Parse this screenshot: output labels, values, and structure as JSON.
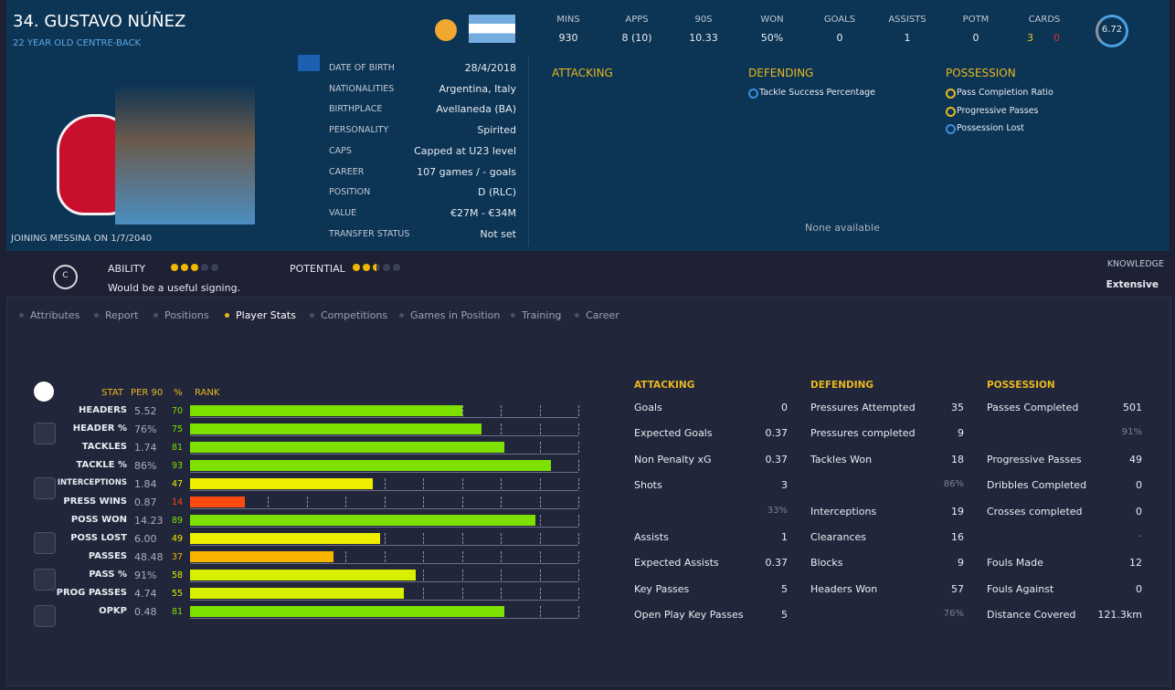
{
  "header": {
    "title": "34. GUSTAVO NÚÑEZ",
    "subtitle": "22 YEAR OLD CENTRE-BACK",
    "joining": "JOINING MESSINA ON 1/7/2040"
  },
  "summary": [
    {
      "label": "MINS",
      "value": "930"
    },
    {
      "label": "APPS",
      "value": "8 (10)"
    },
    {
      "label": "90S",
      "value": "10.33"
    },
    {
      "label": "WON",
      "value": "50%"
    },
    {
      "label": "GOALS",
      "value": "0"
    },
    {
      "label": "ASSISTS",
      "value": "1"
    },
    {
      "label": "POTM",
      "value": "0"
    }
  ],
  "cards": {
    "label": "CARDS",
    "yellow": "3",
    "red": "0"
  },
  "rating": "6.72",
  "info": [
    {
      "label": "DATE OF BIRTH",
      "value": "28/4/2018"
    },
    {
      "label": "NATIONALITIES",
      "value": "Argentina, Italy"
    },
    {
      "label": "BIRTHPLACE",
      "value": "Avellaneda (BA)"
    },
    {
      "label": "PERSONALITY",
      "value": "Spirited"
    },
    {
      "label": "CAPS",
      "value": "Capped at U23 level"
    },
    {
      "label": "CAREER",
      "value": "107 games /  - goals"
    },
    {
      "label": "POSITION",
      "value": "D (RLC)"
    },
    {
      "label": "VALUE",
      "value": "€27M - €34M"
    },
    {
      "label": "TRANSFER STATUS",
      "value": "Not set"
    }
  ],
  "roles": [
    {
      "title": "ATTACKING",
      "items": []
    },
    {
      "title": "DEFENDING",
      "items": [
        "Tackle Success Percentage"
      ]
    },
    {
      "title": "POSSESSION",
      "items": [
        "Pass Completion Ratio",
        "Progressive Passes",
        "Possession Lost"
      ]
    }
  ],
  "roles_empty": "None available",
  "assessment": {
    "badge": "C",
    "ability_label": "ABILITY",
    "ability": 3,
    "potential_label": "POTENTIAL",
    "potential": 2.5,
    "note": "Would be a useful signing.",
    "knowledge_label": "KNOWLEDGE",
    "knowledge": "Extensive"
  },
  "tabs": [
    "Attributes",
    "Report",
    "Positions",
    "Player Stats",
    "Competitions",
    "Games in Position",
    "Training",
    "Career"
  ],
  "active_tab": 3,
  "table": {
    "headers": [
      "STAT",
      "PER 90",
      "%",
      "RANK"
    ],
    "rows": [
      {
        "stat": "HEADERS",
        "per90": "5.52",
        "rank": 70,
        "color": "#7ee000"
      },
      {
        "stat": "HEADER %",
        "per90": "76%",
        "rank": 75,
        "color": "#7ee000"
      },
      {
        "stat": "TACKLES",
        "per90": "1.74",
        "rank": 81,
        "color": "#7ee000"
      },
      {
        "stat": "TACKLE %",
        "per90": "86%",
        "rank": 93,
        "color": "#7ee000"
      },
      {
        "stat": "INTERCEPTIONS",
        "per90": "1.84",
        "rank": 47,
        "color": "#f0ee00"
      },
      {
        "stat": "PRESS WINS",
        "per90": "0.87",
        "rank": 14,
        "color": "#ff4a10"
      },
      {
        "stat": "POSS WON",
        "per90": "14.23",
        "rank": 89,
        "color": "#7ee000"
      },
      {
        "stat": "POSS LOST",
        "per90": "6.00",
        "rank": 49,
        "color": "#f0ee00"
      },
      {
        "stat": "PASSES",
        "per90": "48.48",
        "rank": 37,
        "color": "#f7b500"
      },
      {
        "stat": "PASS %",
        "per90": "91%",
        "rank": 58,
        "color": "#d8f000"
      },
      {
        "stat": "PROG PASSES",
        "per90": "4.74",
        "rank": 55,
        "color": "#d8f000"
      },
      {
        "stat": "OPKP",
        "per90": "0.48",
        "rank": 81,
        "color": "#7ee000"
      }
    ]
  },
  "stats": [
    {
      "title": "ATTACKING",
      "rows": [
        {
          "label": "Goals",
          "value": "0"
        },
        {
          "label": "Expected Goals",
          "value": "0.37"
        },
        {
          "label": "Non Penalty xG",
          "value": "0.37"
        },
        {
          "label": "Shots",
          "value": "3"
        },
        {
          "value": "33%"
        },
        {
          "label": "Assists",
          "value": "1"
        },
        {
          "label": "Expected Assists",
          "value": "0.37"
        },
        {
          "label": "Key Passes",
          "value": "5"
        },
        {
          "label": "Open Play Key Passes",
          "value": "5"
        }
      ]
    },
    {
      "title": "DEFENDING",
      "rows": [
        {
          "label": "Pressures Attempted",
          "value": "35"
        },
        {
          "label": "Pressures completed",
          "value": "9"
        },
        {
          "label": "Tackles Won",
          "value": "18"
        },
        {
          "value": "86%"
        },
        {
          "label": "Interceptions",
          "value": "19"
        },
        {
          "label": "Clearances",
          "value": "16"
        },
        {
          "label": "Blocks",
          "value": "9"
        },
        {
          "label": "Headers Won",
          "value": "57"
        },
        {
          "value": "76%"
        }
      ]
    },
    {
      "title": "POSSESSION",
      "rows": [
        {
          "label": "Passes Completed",
          "value": "501"
        },
        {
          "value": "91%"
        },
        {
          "label": "Progressive Passes",
          "value": "49"
        },
        {
          "label": "Dribbles Completed",
          "value": "0"
        },
        {
          "label": "Crosses completed",
          "value": "0"
        },
        {
          "value": "-"
        },
        {
          "label": "Fouls Made",
          "value": "12"
        },
        {
          "label": "Fouls Against",
          "value": "0"
        },
        {
          "label": "Distance Covered",
          "value": "121.3km"
        }
      ]
    }
  ]
}
